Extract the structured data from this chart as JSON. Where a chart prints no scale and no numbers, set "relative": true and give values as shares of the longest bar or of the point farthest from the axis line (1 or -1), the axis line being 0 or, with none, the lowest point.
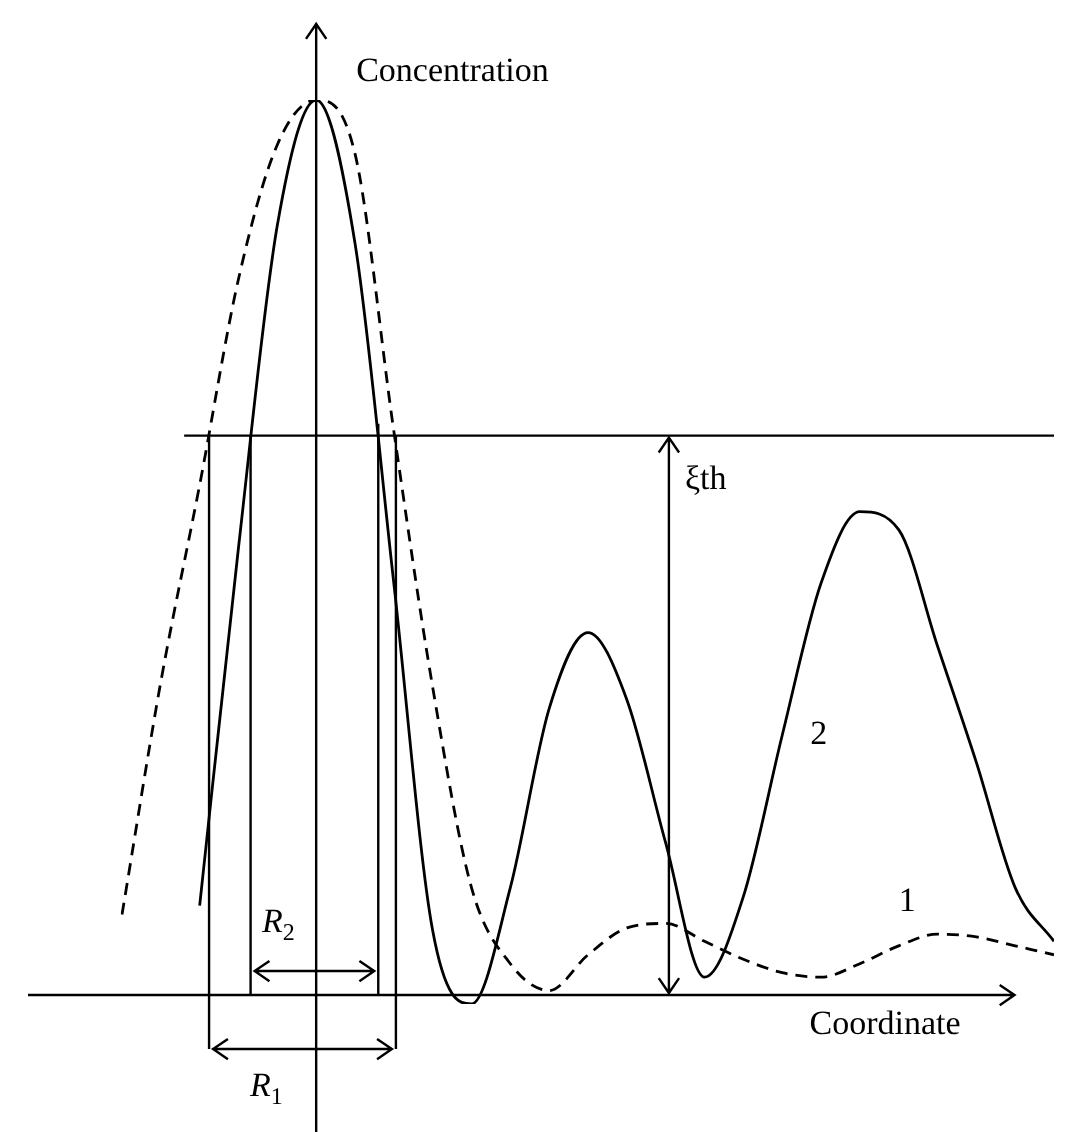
{
  "chart_data": {
    "type": "line",
    "relative": true,
    "xlabel": "Coordinate",
    "ylabel": "Concentration",
    "categories": [
      null,
      null,
      null,
      null,
      null,
      null,
      null,
      null,
      null,
      null,
      null,
      null,
      null,
      null,
      null,
      null,
      null,
      null,
      null,
      null,
      null,
      null,
      null,
      null,
      null
    ],
    "series": [
      {
        "name": "1",
        "color": "#000000",
        "line_style": "dashed",
        "values": [
          0.09,
          0.35,
          0.57,
          0.8,
          0.95,
          1.0,
          0.94,
          0.63,
          0.344,
          0.12,
          0.035,
          0.005,
          0.045,
          0.075,
          0.08,
          0.06,
          0.04,
          0.025,
          0.02,
          0.035,
          0.055,
          0.068,
          0.065,
          0.055,
          0.045
        ]
      },
      {
        "name": "2",
        "color": "#000000",
        "line_style": "solid",
        "values": [
          null,
          null,
          0.1,
          0.5,
          0.86,
          1.0,
          0.84,
          0.46,
          0.072,
          -0.01,
          0.12,
          0.32,
          0.405,
          0.33,
          0.17,
          0.02,
          0.11,
          0.29,
          0.46,
          0.54,
          0.52,
          0.39,
          0.26,
          0.12,
          0.06
        ]
      }
    ],
    "ref_lines": [
      {
        "axis": "y",
        "value": 0.625,
        "label": "ξth"
      }
    ],
    "annotations": [
      "R$_{1}$",
      "R$_{2}$"
    ]
  }
}
